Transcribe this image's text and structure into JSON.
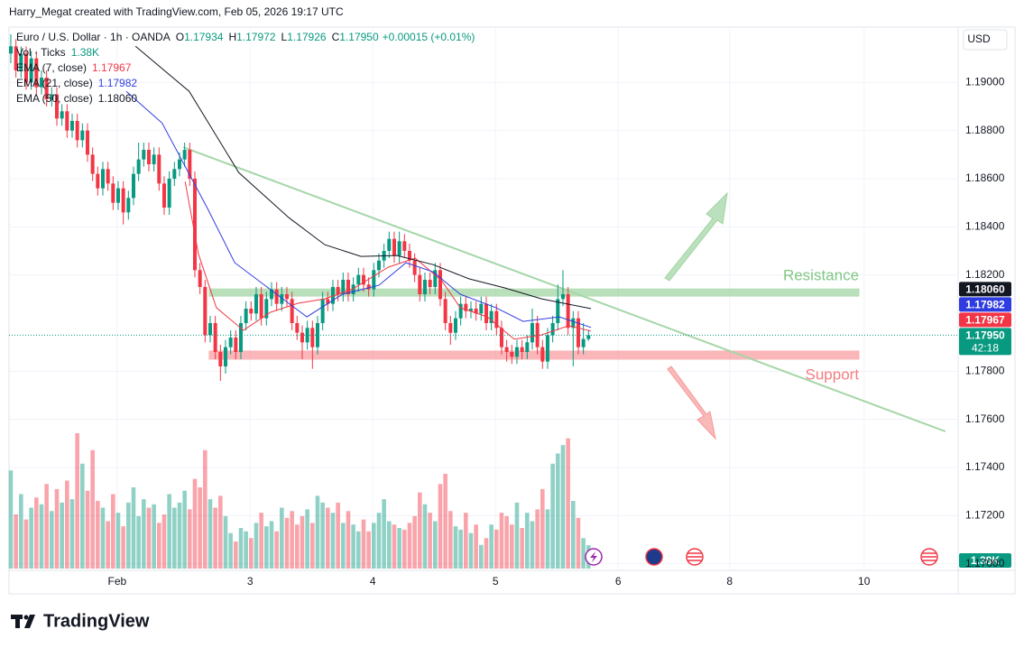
{
  "header": {
    "text": "Harry_Megat created with TradingView.com, Feb 05, 2026 19:17 UTC"
  },
  "chart_data": {
    "type": "candlestick",
    "symbol": "Euro / U.S. Dollar · 1h · OANDA",
    "ohlc": [
      {
        "label": "O",
        "value": "1.17934"
      },
      {
        "label": "H",
        "value": "1.17972"
      },
      {
        "label": "L",
        "value": "1.17926"
      },
      {
        "label": "C",
        "value": "1.17950"
      }
    ],
    "change": "+0.00015 (+0.01%)",
    "currency": "USD",
    "countdown": "42:18",
    "last_label": "1.17950",
    "up_color": "#089981",
    "down_color": "#f23645",
    "candles": [
      [
        1.1912,
        1.192,
        1.1908,
        1.1915
      ],
      [
        1.1915,
        1.1918,
        1.1902,
        1.1905
      ],
      [
        1.1905,
        1.1915,
        1.1902,
        1.1912
      ],
      [
        1.1912,
        1.1915,
        1.1897,
        1.19
      ],
      [
        1.19,
        1.1913,
        1.1897,
        1.191
      ],
      [
        1.191,
        1.1913,
        1.1895,
        1.1898
      ],
      [
        1.1898,
        1.1905,
        1.1895,
        1.1902
      ],
      [
        1.1902,
        1.1905,
        1.189,
        1.1893
      ],
      [
        1.1893,
        1.1898,
        1.189,
        1.1895
      ],
      [
        1.1895,
        1.1898,
        1.1882,
        1.1885
      ],
      [
        1.1885,
        1.1891,
        1.1882,
        1.1888
      ],
      [
        1.1888,
        1.1891,
        1.1877,
        1.188
      ],
      [
        1.188,
        1.1887,
        1.1877,
        1.1884
      ],
      [
        1.1884,
        1.1887,
        1.1873,
        1.1876
      ],
      [
        1.1876,
        1.1883,
        1.1873,
        1.188
      ],
      [
        1.188,
        1.1883,
        1.1867,
        1.187
      ],
      [
        1.187,
        1.1873,
        1.1859,
        1.1862
      ],
      [
        1.1862,
        1.1865,
        1.1853,
        1.1856
      ],
      [
        1.1856,
        1.1867,
        1.1853,
        1.1864
      ],
      [
        1.1864,
        1.1867,
        1.1855,
        1.1858
      ],
      [
        1.1858,
        1.1861,
        1.1847,
        1.185
      ],
      [
        1.185,
        1.1859,
        1.1847,
        1.1856
      ],
      [
        1.1856,
        1.1859,
        1.1841,
        1.1846
      ],
      [
        1.1846,
        1.1855,
        1.1843,
        1.1852
      ],
      [
        1.1852,
        1.1865,
        1.1849,
        1.1862
      ],
      [
        1.1862,
        1.1875,
        1.1859,
        1.1868
      ],
      [
        1.1868,
        1.1875,
        1.1865,
        1.1872
      ],
      [
        1.1872,
        1.1875,
        1.1863,
        1.1866
      ],
      [
        1.1866,
        1.1873,
        1.1863,
        1.187
      ],
      [
        1.187,
        1.1873,
        1.1855,
        1.1858
      ],
      [
        1.1858,
        1.1861,
        1.1845,
        1.1848
      ],
      [
        1.1848,
        1.1863,
        1.1845,
        1.186
      ],
      [
        1.186,
        1.1867,
        1.1857,
        1.1864
      ],
      [
        1.1864,
        1.1871,
        1.1861,
        1.1868
      ],
      [
        1.1868,
        1.1875,
        1.1865,
        1.1872
      ],
      [
        1.1872,
        1.1875,
        1.1857,
        1.186
      ],
      [
        1.186,
        1.1863,
        1.1819,
        1.1822
      ],
      [
        1.1822,
        1.1825,
        1.1812,
        1.1815
      ],
      [
        1.1815,
        1.1818,
        1.1792,
        1.1795
      ],
      [
        1.1795,
        1.1803,
        1.1792,
        1.18
      ],
      [
        1.18,
        1.1803,
        1.1785,
        1.1788
      ],
      [
        1.1788,
        1.1791,
        1.1776,
        1.1782
      ],
      [
        1.1782,
        1.1793,
        1.1779,
        1.179
      ],
      [
        1.179,
        1.1797,
        1.1787,
        1.1794
      ],
      [
        1.1794,
        1.1797,
        1.1785,
        1.1788
      ],
      [
        1.1788,
        1.1803,
        1.1785,
        1.18
      ],
      [
        1.18,
        1.1809,
        1.1797,
        1.1806
      ],
      [
        1.1806,
        1.1809,
        1.1801,
        1.1804
      ],
      [
        1.1804,
        1.1815,
        1.1801,
        1.1812
      ],
      [
        1.1812,
        1.1815,
        1.1799,
        1.1802
      ],
      [
        1.1802,
        1.1813,
        1.1799,
        1.181
      ],
      [
        1.181,
        1.1817,
        1.1807,
        1.1814
      ],
      [
        1.1814,
        1.1817,
        1.1805,
        1.1808
      ],
      [
        1.1808,
        1.1815,
        1.1805,
        1.1812
      ],
      [
        1.1812,
        1.1815,
        1.1807,
        1.181
      ],
      [
        1.181,
        1.1813,
        1.1797,
        1.18
      ],
      [
        1.18,
        1.1803,
        1.1793,
        1.1796
      ],
      [
        1.1796,
        1.1799,
        1.1785,
        1.1792
      ],
      [
        1.1792,
        1.1801,
        1.1789,
        1.1798
      ],
      [
        1.1798,
        1.1801,
        1.1781,
        1.179
      ],
      [
        1.179,
        1.1803,
        1.1787,
        1.18
      ],
      [
        1.18,
        1.1813,
        1.1797,
        1.181
      ],
      [
        1.181,
        1.1813,
        1.1805,
        1.1808
      ],
      [
        1.1808,
        1.1818,
        1.1805,
        1.1815
      ],
      [
        1.1815,
        1.1818,
        1.1809,
        1.1812
      ],
      [
        1.1812,
        1.1821,
        1.1809,
        1.1818
      ],
      [
        1.1818,
        1.1821,
        1.1809,
        1.1812
      ],
      [
        1.1812,
        1.1819,
        1.1809,
        1.1816
      ],
      [
        1.1816,
        1.1823,
        1.1813,
        1.182
      ],
      [
        1.182,
        1.1823,
        1.1813,
        1.1816
      ],
      [
        1.1816,
        1.1819,
        1.1811,
        1.1814
      ],
      [
        1.1814,
        1.1825,
        1.1811,
        1.1822
      ],
      [
        1.1822,
        1.1829,
        1.1819,
        1.1826
      ],
      [
        1.1826,
        1.1833,
        1.1823,
        1.183
      ],
      [
        1.183,
        1.1838,
        1.1827,
        1.1835
      ],
      [
        1.1835,
        1.1838,
        1.1825,
        1.1828
      ],
      [
        1.1828,
        1.1838,
        1.1825,
        1.1834
      ],
      [
        1.1834,
        1.1837,
        1.1827,
        1.183
      ],
      [
        1.183,
        1.1833,
        1.1823,
        1.1826
      ],
      [
        1.1826,
        1.1829,
        1.1817,
        1.182
      ],
      [
        1.182,
        1.1823,
        1.1809,
        1.1812
      ],
      [
        1.1812,
        1.1821,
        1.1809,
        1.1818
      ],
      [
        1.1818,
        1.1821,
        1.1812,
        1.1815
      ],
      [
        1.1815,
        1.1825,
        1.1812,
        1.1822
      ],
      [
        1.1822,
        1.1825,
        1.1807,
        1.181
      ],
      [
        1.181,
        1.1813,
        1.1797,
        1.18
      ],
      [
        1.18,
        1.1803,
        1.1791,
        1.1796
      ],
      [
        1.1796,
        1.1805,
        1.1793,
        1.1802
      ],
      [
        1.1802,
        1.1811,
        1.1799,
        1.1808
      ],
      [
        1.1808,
        1.1811,
        1.1802,
        1.1805
      ],
      [
        1.1805,
        1.1809,
        1.1802,
        1.1806
      ],
      [
        1.1806,
        1.1809,
        1.1801,
        1.1804
      ],
      [
        1.1804,
        1.1811,
        1.1801,
        1.1808
      ],
      [
        1.1808,
        1.1811,
        1.1797,
        1.18
      ],
      [
        1.18,
        1.1808,
        1.1797,
        1.1805
      ],
      [
        1.1805,
        1.1808,
        1.1795,
        1.1798
      ],
      [
        1.1798,
        1.1801,
        1.1787,
        1.179
      ],
      [
        1.179,
        1.1793,
        1.1784,
        1.1788
      ],
      [
        1.1788,
        1.1791,
        1.1783,
        1.1786
      ],
      [
        1.1786,
        1.1793,
        1.1783,
        1.179
      ],
      [
        1.179,
        1.1793,
        1.1785,
        1.1788
      ],
      [
        1.1788,
        1.1795,
        1.1785,
        1.1792
      ],
      [
        1.1792,
        1.1806,
        1.1789,
        1.18
      ],
      [
        1.18,
        1.1803,
        1.1787,
        1.179
      ],
      [
        1.179,
        1.1793,
        1.1781,
        1.1784
      ],
      [
        1.1784,
        1.1798,
        1.1781,
        1.1795
      ],
      [
        1.1795,
        1.1803,
        1.1792,
        1.18
      ],
      [
        1.18,
        1.1816,
        1.1797,
        1.181
      ],
      [
        1.181,
        1.1822,
        1.1807,
        1.1812
      ],
      [
        1.1812,
        1.1815,
        1.1795,
        1.1798
      ],
      [
        1.1798,
        1.1805,
        1.1782,
        1.1802
      ],
      [
        1.1802,
        1.1805,
        1.1787,
        1.179
      ],
      [
        1.179,
        1.18,
        1.1787,
        1.17934
      ],
      [
        1.17934,
        1.17972,
        1.17926,
        1.1795
      ]
    ],
    "volume": {
      "name": "Vol · Ticks",
      "last_label": "1.38K",
      "values": [
        5800,
        3200,
        4400,
        2900,
        3600,
        4200,
        3800,
        5000,
        3400,
        4700,
        3900,
        5200,
        4100,
        8000,
        6200,
        4600,
        7000,
        4000,
        3600,
        2800,
        4400,
        3300,
        2500,
        3900,
        4800,
        3100,
        4100,
        3600,
        3800,
        2700,
        3200,
        4400,
        3600,
        3900,
        4600,
        3500,
        5300,
        4800,
        7000,
        4100,
        3600,
        4300,
        3100,
        2100,
        1600,
        2400,
        2200,
        1800,
        2700,
        3300,
        2500,
        2800,
        2200,
        3600,
        3000,
        3400,
        2600,
        3100,
        3500,
        2700,
        4300,
        3900,
        3600,
        3300,
        3900,
        2700,
        3400,
        2600,
        2200,
        2900,
        2200,
        2700,
        3300,
        4100,
        2800,
        2600,
        2400,
        2300,
        2700,
        3100,
        4500,
        3800,
        3300,
        2800,
        5000,
        5600,
        3400,
        2500,
        2300,
        3300,
        2100,
        2600,
        1400,
        1800,
        2600,
        2300,
        3300,
        3100,
        2600,
        3900,
        2400,
        3300,
        2800,
        3500,
        4700,
        3500,
        6200,
        6800,
        7300,
        7700,
        4000,
        3000,
        1800,
        1380
      ]
    },
    "lines": [
      {
        "name": "EMA (7, close)",
        "color": "#f23645",
        "last_label": "1.17967",
        "x": [
          34.1,
          36.7,
          40.2,
          45.5,
          50.8,
          56.1,
          61.4,
          66.7,
          73.8,
          79.1,
          84.3,
          87.9,
          93.2,
          98.5,
          103.8,
          109.1,
          113.5
        ],
        "values": [
          1.18588,
          1.18288,
          1.18064,
          1.1797,
          1.18045,
          1.18082,
          1.18101,
          1.18139,
          1.18232,
          1.1827,
          1.18176,
          1.18064,
          1.18026,
          1.17933,
          1.17951,
          1.17989,
          1.17967
        ]
      },
      {
        "name": "EMA (21, close)",
        "color": "#2f3de0",
        "last_label": "1.17982",
        "x": [
          22.6,
          29.6,
          38.5,
          43.8,
          50.8,
          57.9,
          64.9,
          72,
          77.3,
          82.6,
          87.9,
          94.9,
          100.2,
          107.3,
          113.5
        ],
        "values": [
          1.18963,
          1.18831,
          1.18476,
          1.18251,
          1.18139,
          1.18026,
          1.1812,
          1.18157,
          1.18251,
          1.18213,
          1.1812,
          1.18064,
          1.18007,
          1.18026,
          1.17982
        ]
      },
      {
        "name": "EMA (50, close)",
        "color": "#131722",
        "last_label": "1.18060",
        "x": [
          24.4,
          34.9,
          44.6,
          54.4,
          61.4,
          68.5,
          75.5,
          82.6,
          89.6,
          96.7,
          103.8,
          113.5
        ],
        "values": [
          1.1915,
          1.18963,
          1.18625,
          1.18438,
          1.18326,
          1.18277,
          1.18281,
          1.18243,
          1.18184,
          1.18146,
          1.18101,
          1.1806
        ]
      }
    ],
    "annotations": {
      "resistance": {
        "label": "Resistance",
        "color": "#81c784",
        "x": [
          38.8,
          165.9
        ],
        "range": [
          1.18112,
          1.18142
        ]
      },
      "support": {
        "label": "Support",
        "color": "#f77c80",
        "x": [
          38.8,
          165.9
        ],
        "range": [
          1.1785,
          1.17884
        ]
      },
      "trendline": {
        "color": "#a5d6a7",
        "x": [
          33.7,
          182.8
        ],
        "y": [
          1.18731,
          1.1755
        ]
      }
    },
    "xlim": [
      -0.35,
      185.3
    ],
    "xticks": [
      {
        "value": 20.8,
        "label": "Feb"
      },
      {
        "value": 46.8,
        "label": "3"
      },
      {
        "value": 70.8,
        "label": "4"
      },
      {
        "value": 94.8,
        "label": "5"
      },
      {
        "value": 118.8,
        "label": "6"
      },
      {
        "value": 140.6,
        "label": "8"
      },
      {
        "value": 166.9,
        "label": "10"
      }
    ],
    "ylim": [
      1.1698,
      1.1923
    ],
    "yticks": [
      {
        "value": 1.19,
        "label": "1.19000"
      },
      {
        "value": 1.188,
        "label": "1.18800"
      },
      {
        "value": 1.186,
        "label": "1.18600"
      },
      {
        "value": 1.184,
        "label": "1.18400"
      },
      {
        "value": 1.182,
        "label": "1.18200"
      },
      {
        "value": 1.178,
        "label": "1.17800"
      },
      {
        "value": 1.176,
        "label": "1.17600"
      },
      {
        "value": 1.174,
        "label": "1.17400"
      },
      {
        "value": 1.172,
        "label": "1.17200"
      },
      {
        "value": 1.17,
        "label": "1.17000"
      }
    ],
    "grid": true
  },
  "footer": {
    "brand": "TradingView"
  }
}
